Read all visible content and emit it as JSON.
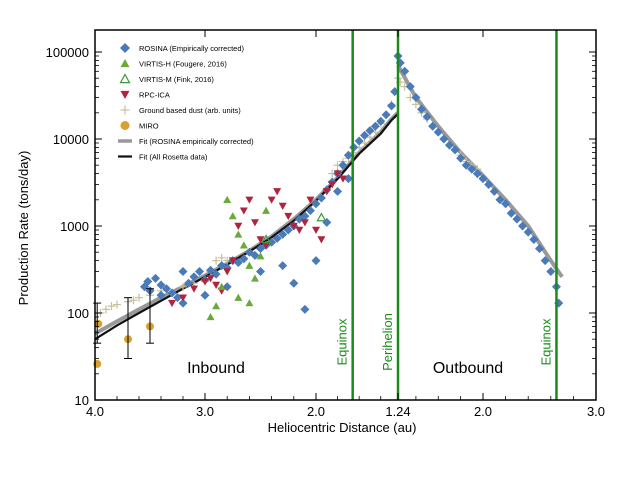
{
  "chart_data": {
    "type": "scatter",
    "ylabel": "Production Rate (tons/day)",
    "xlabel": "Heliocentric Distance (au)",
    "y_scale": "log",
    "ylim": [
      10,
      150000
    ],
    "y_ticks": [
      10,
      100,
      1000,
      10000,
      100000
    ],
    "y_tick_labels": [
      "10",
      "100",
      "1000",
      "10000",
      "100000"
    ],
    "x_axis_note": "split axis: inbound distance decreasing 4.0 to 1.24 au, outbound increasing 1.24 to 3.0 au",
    "x_ticks_inbound": [
      4.0,
      3.0,
      2.0,
      1.24
    ],
    "x_ticks_outbound": [
      2.0,
      3.0
    ],
    "x_tick_labels": [
      "4.0",
      "3.0",
      "2.0",
      "1.24",
      "2.0",
      "3.0"
    ],
    "region_labels": [
      "Inbound",
      "Outbound"
    ],
    "vertical_lines": [
      {
        "label": "Equinox",
        "leg": "inbound",
        "au": 1.66,
        "color": "#1a8a1a"
      },
      {
        "label": "Perihelion",
        "leg": "perihelion",
        "au": 1.24,
        "color": "#1a8a1a"
      },
      {
        "label": "Equinox",
        "leg": "outbound",
        "au": 2.65,
        "color": "#1a8a1a"
      }
    ],
    "legend_position": "top-left",
    "legend": [
      {
        "name": "ROSINA (Empirically corrected)",
        "marker": "diamond",
        "color": "#4a7ab8"
      },
      {
        "name": "VIRTIS-H (Fougere, 2016)",
        "marker": "triangle-up",
        "color": "#6aaa3a"
      },
      {
        "name": "VIRTIS-M (Fink, 2016)",
        "marker": "triangle-up-open",
        "color": "#3a9a3a"
      },
      {
        "name": "RPC-ICA",
        "marker": "triangle-down",
        "color": "#b0243c"
      },
      {
        "name": "Ground based dust (arb. units)",
        "marker": "plus",
        "color": "#c8c09a"
      },
      {
        "name": "MIRO",
        "marker": "circle",
        "color": "#d8a030"
      },
      {
        "name": "Fit (ROSINA empirically corrected)",
        "marker": "line",
        "color": "#999999"
      },
      {
        "name": "Fit (All Rosetta data)",
        "marker": "line",
        "color": "#111111"
      }
    ],
    "series": [
      {
        "name": "ROSINA (Empirically corrected)",
        "points_in": [
          [
            3.55,
            200
          ],
          [
            3.52,
            230
          ],
          [
            3.5,
            180
          ],
          [
            3.45,
            250
          ],
          [
            3.4,
            210
          ],
          [
            3.35,
            190
          ],
          [
            3.3,
            170
          ],
          [
            3.25,
            150
          ],
          [
            3.2,
            130
          ],
          [
            3.15,
            220
          ],
          [
            3.1,
            260
          ],
          [
            3.05,
            300
          ],
          [
            3.0,
            240
          ],
          [
            2.95,
            310
          ],
          [
            2.9,
            280
          ],
          [
            2.85,
            350
          ],
          [
            2.8,
            330
          ],
          [
            2.75,
            400
          ],
          [
            2.7,
            380
          ],
          [
            2.65,
            420
          ],
          [
            2.6,
            500
          ],
          [
            2.55,
            460
          ],
          [
            2.5,
            550
          ],
          [
            2.45,
            600
          ],
          [
            2.4,
            650
          ],
          [
            2.35,
            720
          ],
          [
            2.3,
            800
          ],
          [
            2.25,
            900
          ],
          [
            2.2,
            1000
          ],
          [
            2.15,
            1200
          ],
          [
            2.1,
            1300
          ],
          [
            2.05,
            1500
          ],
          [
            2.0,
            1800
          ],
          [
            1.95,
            2100
          ],
          [
            1.9,
            2600
          ],
          [
            1.85,
            3200
          ],
          [
            1.8,
            4000
          ],
          [
            1.75,
            5000
          ],
          [
            1.7,
            6500
          ],
          [
            1.65,
            8000
          ],
          [
            1.6,
            9500
          ],
          [
            1.55,
            11000
          ],
          [
            1.5,
            12500
          ],
          [
            1.45,
            14000
          ],
          [
            1.4,
            16000
          ],
          [
            1.35,
            19000
          ],
          [
            1.3,
            24000
          ],
          [
            1.27,
            35000
          ],
          [
            2.2,
            220
          ],
          [
            2.3,
            350
          ],
          [
            2.5,
            300
          ],
          [
            2.8,
            200
          ],
          [
            3.0,
            160
          ],
          [
            3.2,
            300
          ],
          [
            3.4,
            160
          ],
          [
            2.1,
            110
          ],
          [
            2.0,
            400
          ],
          [
            1.9,
            1100
          ],
          [
            1.8,
            2500
          ],
          [
            1.7,
            3500
          ]
        ],
        "points_out": [
          [
            1.24,
            90000
          ],
          [
            1.26,
            75000
          ],
          [
            1.3,
            60000
          ],
          [
            1.35,
            40000
          ],
          [
            1.4,
            30000
          ],
          [
            1.45,
            22000
          ],
          [
            1.5,
            18000
          ],
          [
            1.55,
            14000
          ],
          [
            1.6,
            12000
          ],
          [
            1.65,
            10000
          ],
          [
            1.7,
            8500
          ],
          [
            1.75,
            7500
          ],
          [
            1.8,
            6000
          ],
          [
            1.85,
            5000
          ],
          [
            1.9,
            4500
          ],
          [
            1.95,
            4000
          ],
          [
            2.0,
            3500
          ],
          [
            2.05,
            3000
          ],
          [
            2.1,
            2500
          ],
          [
            2.15,
            2000
          ],
          [
            2.2,
            1800
          ],
          [
            2.25,
            1400
          ],
          [
            2.3,
            1200
          ],
          [
            2.35,
            1000
          ],
          [
            2.4,
            850
          ],
          [
            2.45,
            700
          ],
          [
            2.5,
            550
          ],
          [
            2.55,
            400
          ],
          [
            2.6,
            300
          ],
          [
            2.65,
            200
          ],
          [
            2.67,
            130
          ]
        ]
      },
      {
        "name": "VIRTIS-H (Fougere, 2016)",
        "points_in": [
          [
            2.8,
            2000
          ],
          [
            2.75,
            1300
          ],
          [
            2.7,
            800
          ],
          [
            2.65,
            600
          ],
          [
            2.6,
            350
          ],
          [
            2.55,
            250
          ],
          [
            2.5,
            450
          ],
          [
            2.45,
            1500
          ],
          [
            2.7,
            150
          ],
          [
            2.6,
            130
          ],
          [
            2.85,
            200
          ],
          [
            2.9,
            120
          ],
          [
            2.95,
            90
          ]
        ]
      },
      {
        "name": "VIRTIS-M (Fink, 2016)",
        "points_in": [
          [
            1.95,
            1250
          ],
          [
            2.45,
            700
          ]
        ]
      },
      {
        "name": "RPC-ICA",
        "points_in": [
          [
            3.3,
            130
          ],
          [
            3.2,
            150
          ],
          [
            3.1,
            190
          ],
          [
            3.0,
            230
          ],
          [
            2.95,
            250
          ],
          [
            2.9,
            210
          ],
          [
            2.85,
            180
          ],
          [
            2.8,
            300
          ],
          [
            2.75,
            400
          ],
          [
            2.7,
            1000
          ],
          [
            2.65,
            1500
          ],
          [
            2.6,
            2000
          ],
          [
            2.55,
            1100
          ],
          [
            2.5,
            700
          ],
          [
            2.45,
            600
          ],
          [
            2.4,
            2000
          ],
          [
            2.35,
            2500
          ],
          [
            2.3,
            1700
          ],
          [
            2.25,
            1300
          ],
          [
            2.2,
            1000
          ],
          [
            2.15,
            900
          ],
          [
            2.1,
            1100
          ],
          [
            2.05,
            2000
          ],
          [
            2.0,
            900
          ],
          [
            1.95,
            700
          ],
          [
            1.9,
            2500
          ],
          [
            1.85,
            3000
          ],
          [
            1.8,
            4000
          ],
          [
            1.75,
            3500
          ]
        ]
      },
      {
        "name": "Ground based dust (arb. units)",
        "points_in": [
          [
            3.95,
            100
          ],
          [
            3.9,
            110
          ],
          [
            3.85,
            120
          ],
          [
            3.8,
            125
          ],
          [
            3.7,
            135
          ],
          [
            3.65,
            140
          ],
          [
            3.6,
            150
          ],
          [
            3.5,
            160
          ],
          [
            3.4,
            180
          ],
          [
            3.2,
            200
          ],
          [
            3.1,
            220
          ],
          [
            3.0,
            230
          ],
          [
            2.95,
            300
          ],
          [
            2.9,
            400
          ],
          [
            2.85,
            430
          ],
          [
            2.8,
            400
          ],
          [
            1.85,
            4000
          ],
          [
            1.8,
            5000
          ],
          [
            1.75,
            5500
          ],
          [
            1.7,
            6000
          ],
          [
            1.65,
            7000
          ],
          [
            1.6,
            8000
          ],
          [
            1.55,
            9000
          ],
          [
            1.5,
            10500
          ],
          [
            1.45,
            12000
          ],
          [
            1.4,
            15000
          ],
          [
            1.35,
            19000
          ],
          [
            1.3,
            25000
          ]
        ],
        "points_out": [
          [
            1.24,
            50000
          ],
          [
            1.26,
            45000
          ],
          [
            1.3,
            40000
          ],
          [
            1.35,
            30000
          ],
          [
            1.4,
            25000
          ],
          [
            1.45,
            20000
          ],
          [
            1.5,
            17000
          ],
          [
            1.55,
            14000
          ],
          [
            1.6,
            12000
          ],
          [
            1.65,
            10000
          ],
          [
            1.7,
            8500
          ],
          [
            1.75,
            7500
          ],
          [
            1.8,
            6500
          ],
          [
            1.85,
            5500
          ],
          [
            1.9,
            5000
          ],
          [
            1.95,
            4500
          ]
        ]
      },
      {
        "name": "MIRO",
        "points_in": [
          [
            3.98,
            26
          ],
          [
            3.97,
            75
          ],
          [
            3.7,
            50
          ],
          [
            3.5,
            70
          ]
        ]
      },
      {
        "name": "Fit (ROSINA empirically corrected)",
        "line_in": [
          [
            4.0,
            58
          ],
          [
            3.8,
            80
          ],
          [
            3.6,
            110
          ],
          [
            3.4,
            150
          ],
          [
            3.2,
            200
          ],
          [
            3.0,
            270
          ],
          [
            2.8,
            370
          ],
          [
            2.6,
            520
          ],
          [
            2.4,
            760
          ],
          [
            2.2,
            1200
          ],
          [
            2.0,
            2000
          ],
          [
            1.8,
            3600
          ],
          [
            1.6,
            7000
          ],
          [
            1.4,
            12000
          ],
          [
            1.3,
            17000
          ],
          [
            1.24,
            20000
          ]
        ],
        "line_out": [
          [
            1.24,
            70000
          ],
          [
            1.4,
            30000
          ],
          [
            1.6,
            14000
          ],
          [
            1.8,
            7000
          ],
          [
            2.0,
            3800
          ],
          [
            2.2,
            2000
          ],
          [
            2.4,
            1000
          ],
          [
            2.6,
            400
          ],
          [
            2.7,
            260
          ]
        ]
      },
      {
        "name": "Fit (All Rosetta data)",
        "line_in": [
          [
            4.0,
            50
          ],
          [
            3.8,
            72
          ],
          [
            3.6,
            100
          ],
          [
            3.4,
            138
          ],
          [
            3.2,
            190
          ],
          [
            3.0,
            260
          ],
          [
            2.8,
            360
          ],
          [
            2.6,
            510
          ],
          [
            2.4,
            740
          ],
          [
            2.2,
            1150
          ],
          [
            2.0,
            1950
          ],
          [
            1.8,
            3500
          ],
          [
            1.6,
            6800
          ],
          [
            1.4,
            11500
          ],
          [
            1.3,
            16500
          ],
          [
            1.24,
            19500
          ]
        ]
      }
    ]
  }
}
